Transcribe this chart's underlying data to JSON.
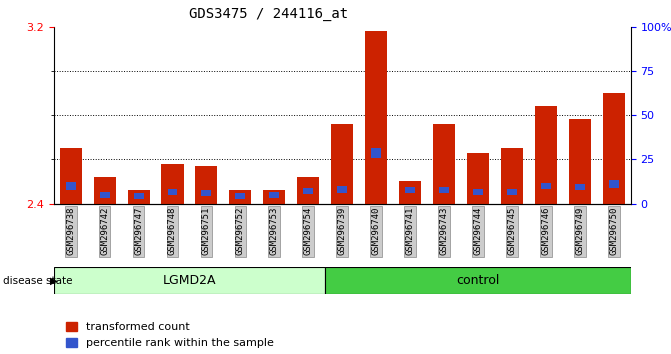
{
  "title": "GDS3475 / 244116_at",
  "samples": [
    "GSM296738",
    "GSM296742",
    "GSM296747",
    "GSM296748",
    "GSM296751",
    "GSM296752",
    "GSM296753",
    "GSM296754",
    "GSM296739",
    "GSM296740",
    "GSM296741",
    "GSM296743",
    "GSM296744",
    "GSM296745",
    "GSM296746",
    "GSM296749",
    "GSM296750"
  ],
  "groups": [
    "LGMD2A",
    "LGMD2A",
    "LGMD2A",
    "LGMD2A",
    "LGMD2A",
    "LGMD2A",
    "LGMD2A",
    "LGMD2A",
    "control",
    "control",
    "control",
    "control",
    "control",
    "control",
    "control",
    "control",
    "control"
  ],
  "red_values": [
    2.65,
    2.52,
    2.46,
    2.58,
    2.57,
    2.46,
    2.46,
    2.52,
    2.76,
    3.18,
    2.5,
    2.76,
    2.63,
    2.65,
    2.84,
    2.78,
    2.9
  ],
  "blue_values": [
    0.035,
    0.025,
    0.028,
    0.028,
    0.03,
    0.028,
    0.028,
    0.03,
    0.03,
    0.045,
    0.03,
    0.03,
    0.028,
    0.028,
    0.028,
    0.028,
    0.038
  ],
  "blue_bottom": [
    2.463,
    2.427,
    2.42,
    2.438,
    2.433,
    2.42,
    2.424,
    2.442,
    2.448,
    2.605,
    2.447,
    2.447,
    2.438,
    2.438,
    2.467,
    2.46,
    2.47
  ],
  "y_min": 2.4,
  "y_max": 3.2,
  "y_ticks_major": [
    2.4,
    3.2
  ],
  "y_ticks_minor": [
    2.6,
    2.8,
    3.0
  ],
  "y2_ticks": [
    0,
    25,
    50,
    75,
    100
  ],
  "bar_color": "#cc2200",
  "blue_color": "#3355cc",
  "lgmd2a_color": "#ccffcc",
  "control_color": "#44cc44",
  "legend_red_label": "transformed count",
  "legend_blue_label": "percentile rank within the sample",
  "group_label": "disease state",
  "lgmd2a_label": "LGMD2A",
  "control_label": "control",
  "lgmd2a_count": 8,
  "control_count": 9
}
